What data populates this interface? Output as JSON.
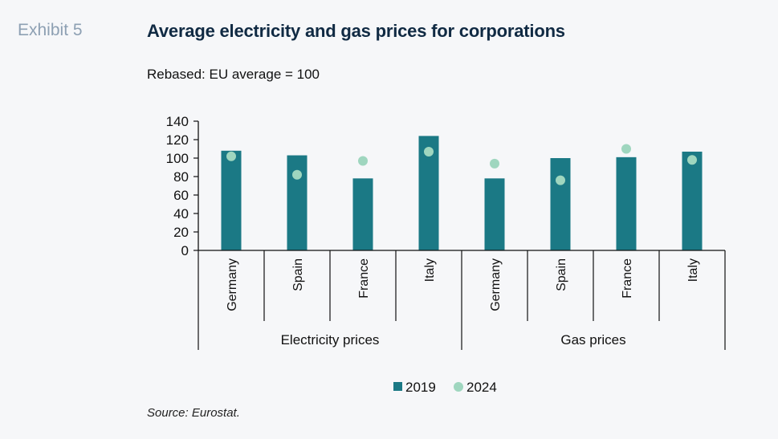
{
  "header": {
    "exhibit": "Exhibit 5",
    "title": "Average electricity and gas prices for corporations",
    "subtitle": "Rebased: EU average = 100"
  },
  "source": "Source: Eurostat.",
  "colors": {
    "bar_2019": "#1b7985",
    "dot_2024": "#9fd6bf",
    "axis": "#111111"
  },
  "chart_data": {
    "type": "bar",
    "title": "Average electricity and gas prices for corporations",
    "subtitle": "Rebased: EU average = 100",
    "ylim": [
      0,
      140
    ],
    "yticks": [
      0,
      20,
      40,
      60,
      80,
      100,
      120,
      140
    ],
    "grid": false,
    "legend_position": "bottom",
    "groups": [
      {
        "label": "Electricity prices",
        "categories": [
          "Germany",
          "Spain",
          "France",
          "Italy"
        ]
      },
      {
        "label": "Gas prices",
        "categories": [
          "Germany",
          "Spain",
          "France",
          "Italy"
        ]
      }
    ],
    "series": [
      {
        "name": "2019",
        "kind": "bar",
        "values": [
          108,
          103,
          78,
          124,
          78,
          100,
          101,
          107
        ]
      },
      {
        "name": "2024",
        "kind": "dot",
        "values": [
          102,
          82,
          97,
          107,
          94,
          76,
          110,
          98
        ]
      }
    ]
  }
}
